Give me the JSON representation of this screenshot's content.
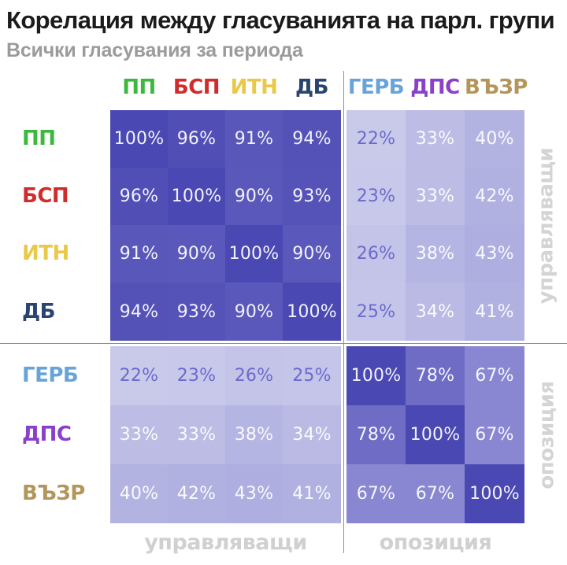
{
  "header": {
    "title": "Корелация между гласуванията на парл. групи",
    "subtitle": "Всички гласувания за периода"
  },
  "chart_data": {
    "type": "heatmap",
    "title": "Корелация между гласуванията на парл. групи",
    "subtitle": "Всички гласувания за периода",
    "categories": [
      "ПП",
      "БСП",
      "ИТН",
      "ДБ",
      "ГЕРБ",
      "ДПС",
      "ВЪЗР"
    ],
    "party_colors": [
      "#3cb93c",
      "#d02c2c",
      "#eac848",
      "#2a4470",
      "#68a3da",
      "#8a40c8",
      "#b3965c"
    ],
    "rows": [
      {
        "label": "ПП",
        "values": [
          100,
          96,
          91,
          94,
          22,
          33,
          40
        ]
      },
      {
        "label": "БСП",
        "values": [
          96,
          100,
          90,
          93,
          23,
          33,
          42
        ]
      },
      {
        "label": "ИТН",
        "values": [
          91,
          90,
          100,
          90,
          26,
          38,
          43
        ]
      },
      {
        "label": "ДБ",
        "values": [
          94,
          93,
          90,
          100,
          25,
          34,
          41
        ]
      },
      {
        "label": "ГЕРБ",
        "values": [
          22,
          23,
          26,
          25,
          100,
          78,
          67
        ]
      },
      {
        "label": "ДПС",
        "values": [
          33,
          33,
          38,
          34,
          78,
          100,
          67
        ]
      },
      {
        "label": "ВЪЗР",
        "values": [
          40,
          42,
          43,
          41,
          67,
          67,
          100
        ]
      }
    ],
    "value_suffix": "%",
    "value_range": [
      0,
      100
    ],
    "groups": {
      "governing": "управляващи",
      "opposition": "опозиция"
    },
    "group_split_index": 4,
    "legend": "none",
    "grid": "off",
    "color_scale": {
      "anchors": [
        [
          22,
          "#c9c9ea"
        ],
        [
          40,
          "#b3b3e2"
        ],
        [
          67,
          "#8a87d2"
        ],
        [
          78,
          "#6f6cc6"
        ],
        [
          100,
          "#4a48b2"
        ]
      ],
      "low_text": "#6b6acd",
      "high_text": "rgba(255,255,255,0.92)",
      "text_threshold": 30
    },
    "divider_color": "#8f8f8f",
    "group_label_color": "#d0d0d0"
  }
}
